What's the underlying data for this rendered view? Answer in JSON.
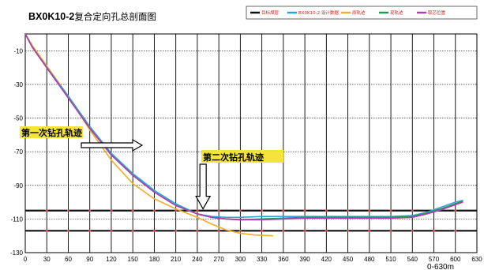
{
  "chart_data": {
    "type": "line",
    "title": "BX0K10-2复合定向孔总剖面图",
    "xlabel": "0-630m",
    "ylabel": "",
    "xlim": [
      0,
      630
    ],
    "ylim": [
      -130,
      0
    ],
    "x_ticks": [
      0,
      30,
      60,
      90,
      120,
      150,
      180,
      210,
      240,
      270,
      300,
      330,
      360,
      390,
      420,
      450,
      480,
      510,
      540,
      570,
      600,
      630
    ],
    "y_ticks": [
      -10,
      -30,
      -50,
      -70,
      -90,
      -110,
      -130
    ],
    "grid": true,
    "legend_position": "top-right",
    "target_layers": [
      {
        "name": "目标煤层",
        "y": -105,
        "color": "#111111"
      },
      {
        "name": "目标煤层",
        "y": -117,
        "color": "#111111"
      }
    ],
    "series": [
      {
        "name": "目标煤层",
        "color": "#111111",
        "x": [],
        "y": []
      },
      {
        "name": "BX0K10-2 设计数据",
        "color": "#29a8d6",
        "x": [
          0,
          10,
          30,
          60,
          90,
          120,
          150,
          180,
          210,
          240,
          260,
          280,
          300,
          330,
          360,
          390,
          420,
          450,
          480,
          510,
          540,
          560,
          580,
          600,
          610
        ],
        "y": [
          0,
          -8,
          -20,
          -37,
          -55,
          -71,
          -83,
          -93,
          -101,
          -107,
          -108.5,
          -109,
          -109,
          -108.5,
          -108.5,
          -108.5,
          -108.5,
          -108.5,
          -108.5,
          -108.5,
          -108,
          -106,
          -103,
          -100,
          -99
        ]
      },
      {
        "name": "原轨迹",
        "color": "#f0b030",
        "x": [
          0,
          10,
          30,
          60,
          90,
          120,
          150,
          180,
          210,
          240,
          260,
          280,
          300,
          320,
          345
        ],
        "y": [
          0,
          -7,
          -19,
          -37,
          -57,
          -75,
          -89,
          -98,
          -104,
          -109,
          -113,
          -116.5,
          -118.5,
          -119.5,
          -120
        ]
      },
      {
        "name": "现轨迹",
        "color": "#1f9a55",
        "x": [
          0,
          10,
          30,
          60,
          90,
          120,
          150,
          180,
          210,
          240,
          260,
          280,
          300,
          330,
          360,
          390,
          420,
          450,
          480,
          510,
          540,
          560,
          580,
          600,
          610
        ],
        "y": [
          0,
          -8,
          -20,
          -38,
          -56,
          -72,
          -84,
          -94,
          -102,
          -107,
          -109,
          -110,
          -110.5,
          -110,
          -109.5,
          -109,
          -109,
          -109,
          -109,
          -109,
          -108.5,
          -106.5,
          -104,
          -101,
          -99.5
        ]
      },
      {
        "name": "取芯位置",
        "color": "#b040b0",
        "x": [
          0,
          10,
          30,
          60,
          90,
          120,
          150,
          180,
          210,
          240,
          260,
          280,
          300,
          330,
          360,
          390,
          420,
          450,
          480,
          510,
          540,
          560,
          580,
          600,
          610
        ],
        "y": [
          0,
          -8,
          -20,
          -38,
          -56,
          -72,
          -84,
          -94,
          -102,
          -107,
          -109,
          -110,
          -110.5,
          -110.5,
          -110,
          -109.5,
          -109.5,
          -109.5,
          -109.5,
          -109.5,
          -109,
          -107,
          -104.5,
          -101.5,
          -100
        ]
      }
    ],
    "annotations": [
      {
        "text": "第一次钻孔轨迹",
        "points_to_x": 163,
        "points_to_y": -70,
        "arrow": "right"
      },
      {
        "text": "第二次钻孔轨迹",
        "points_to_x": 248,
        "points_to_y": -104,
        "arrow": "down"
      }
    ]
  }
}
